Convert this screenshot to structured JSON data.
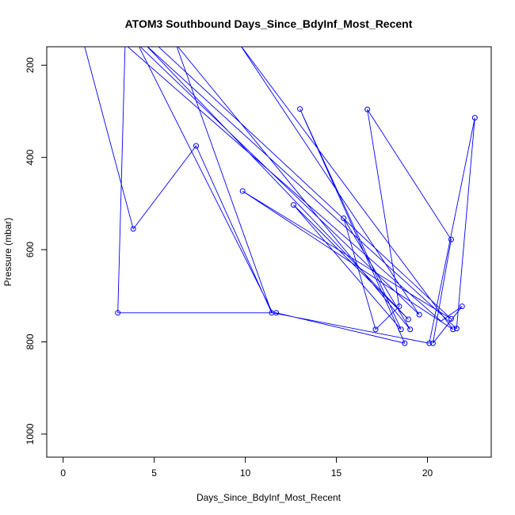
{
  "chart_data": {
    "type": "line",
    "title": "ATOM3 Southbound Days_Since_BdyInf_Most_Recent",
    "xlabel": "Days_Since_BdyInf_Most_Recent",
    "ylabel": "Pressure (mbar)",
    "xlim": [
      -0.9,
      23.5
    ],
    "ylim": [
      1050,
      160
    ],
    "y_axis_inverted": true,
    "x_ticks": [
      0,
      5,
      10,
      15,
      20
    ],
    "y_ticks": [
      200,
      400,
      600,
      800,
      1000
    ],
    "grid": false,
    "series_color": "#0000ff",
    "series": [
      {
        "path": [
          [
            1.15,
            155
          ],
          [
            3.85,
            555
          ],
          [
            7.3,
            375
          ],
          [
            11.45,
            737
          ],
          [
            6.2,
            155
          ],
          [
            19.05,
            773
          ],
          [
            15.4,
            532
          ],
          [
            17.15,
            773
          ],
          [
            18.45,
            723
          ],
          [
            16.7,
            296
          ],
          [
            21.3,
            578
          ],
          [
            20.3,
            803
          ],
          [
            21.9,
            723
          ],
          [
            20.75,
            755
          ],
          [
            3.4,
            155
          ],
          [
            3.0,
            737
          ],
          [
            11.7,
            737
          ],
          [
            18.75,
            803
          ],
          [
            13.0,
            295
          ],
          [
            18.55,
            773
          ],
          [
            12.65,
            503
          ],
          [
            18.95,
            751
          ],
          [
            4.5,
            155
          ],
          [
            21.6,
            771
          ],
          [
            22.6,
            314
          ],
          [
            20.1,
            803
          ],
          [
            11.5,
            737
          ],
          [
            4.1,
            155
          ],
          [
            19.55,
            741
          ],
          [
            9.7,
            155
          ],
          [
            21.4,
            773
          ],
          [
            9.85,
            473
          ],
          [
            21.3,
            750
          ],
          [
            5.1,
            155
          ]
        ],
        "markers": [
          [
            3.85,
            555
          ],
          [
            7.3,
            375
          ],
          [
            11.45,
            737
          ],
          [
            19.05,
            773
          ],
          [
            15.4,
            532
          ],
          [
            17.15,
            773
          ],
          [
            18.45,
            723
          ],
          [
            16.7,
            296
          ],
          [
            21.3,
            578
          ],
          [
            20.3,
            803
          ],
          [
            21.9,
            723
          ],
          [
            3.0,
            737
          ],
          [
            11.7,
            737
          ],
          [
            18.75,
            803
          ],
          [
            13.0,
            295
          ],
          [
            18.55,
            773
          ],
          [
            12.65,
            503
          ],
          [
            18.95,
            751
          ],
          [
            21.6,
            771
          ],
          [
            22.6,
            314
          ],
          [
            20.1,
            803
          ],
          [
            19.55,
            741
          ],
          [
            21.4,
            773
          ],
          [
            9.85,
            473
          ],
          [
            21.3,
            750
          ]
        ]
      }
    ]
  }
}
